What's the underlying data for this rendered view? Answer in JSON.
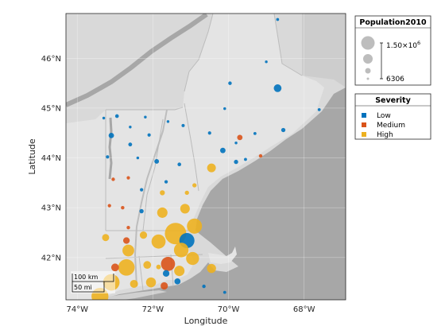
{
  "chart_data": {
    "type": "scatter",
    "subtype": "geographic-bubble",
    "xlabel": "Longitude",
    "ylabel": "Latitude",
    "xlim": [
      -74.3,
      -66.9
    ],
    "ylim": [
      41.15,
      46.9
    ],
    "x_ticks": [
      -74,
      -72,
      -70,
      -68
    ],
    "x_tick_labels": [
      "74°W",
      "72°W",
      "70°W",
      "68°W"
    ],
    "y_ticks": [
      42,
      43,
      44,
      45,
      46
    ],
    "y_tick_labels": [
      "42°N",
      "43°N",
      "44°N",
      "45°N",
      "46°N"
    ],
    "grid": true,
    "size_legend": {
      "title": "Population2010",
      "max_label": "1.50×10",
      "max_label_exp": "6",
      "min_label": "6306",
      "max_value": 1500000,
      "min_value": 6306
    },
    "color_legend": {
      "title": "Severity",
      "placement": "right",
      "categories": [
        {
          "name": "Low",
          "color": "#0072BD"
        },
        {
          "name": "Medium",
          "color": "#D95319"
        },
        {
          "name": "High",
          "color": "#EDB120"
        }
      ]
    },
    "scale_bar": {
      "km_label": "100 km",
      "mi_label": "50 mi"
    },
    "points": [
      {
        "lon": -68.7,
        "lat": 46.78,
        "pop": 9000,
        "severity": "Low"
      },
      {
        "lon": -69.0,
        "lat": 45.93,
        "pop": 6306,
        "severity": "Low"
      },
      {
        "lon": -69.96,
        "lat": 45.5,
        "pop": 17000,
        "severity": "Low"
      },
      {
        "lon": -68.7,
        "lat": 45.4,
        "pop": 150000,
        "severity": "Low"
      },
      {
        "lon": -70.1,
        "lat": 44.99,
        "pop": 7000,
        "severity": "Low"
      },
      {
        "lon": -67.6,
        "lat": 44.97,
        "pop": 9000,
        "severity": "Low"
      },
      {
        "lon": -72.95,
        "lat": 44.84,
        "pop": 20000,
        "severity": "Low"
      },
      {
        "lon": -73.3,
        "lat": 44.8,
        "pop": 6800,
        "severity": "Low"
      },
      {
        "lon": -72.2,
        "lat": 44.82,
        "pop": 7000,
        "severity": "Low"
      },
      {
        "lon": -71.6,
        "lat": 44.73,
        "pop": 6400,
        "severity": "Low"
      },
      {
        "lon": -71.2,
        "lat": 44.65,
        "pop": 12000,
        "severity": "Low"
      },
      {
        "lon": -72.6,
        "lat": 44.62,
        "pop": 6600,
        "severity": "Low"
      },
      {
        "lon": -73.1,
        "lat": 44.45,
        "pop": 60000,
        "severity": "Low"
      },
      {
        "lon": -72.1,
        "lat": 44.46,
        "pop": 14000,
        "severity": "Low"
      },
      {
        "lon": -70.5,
        "lat": 44.5,
        "pop": 14000,
        "severity": "Low"
      },
      {
        "lon": -69.3,
        "lat": 44.49,
        "pop": 10000,
        "severity": "Low"
      },
      {
        "lon": -68.55,
        "lat": 44.56,
        "pop": 30000,
        "severity": "Low"
      },
      {
        "lon": -69.7,
        "lat": 44.41,
        "pop": 60000,
        "severity": "Medium"
      },
      {
        "lon": -72.6,
        "lat": 44.27,
        "pop": 22000,
        "severity": "Low"
      },
      {
        "lon": -69.8,
        "lat": 44.3,
        "pop": 7000,
        "severity": "Low"
      },
      {
        "lon": -70.15,
        "lat": 44.15,
        "pop": 60000,
        "severity": "Low"
      },
      {
        "lon": -73.2,
        "lat": 44.02,
        "pop": 12000,
        "severity": "Low"
      },
      {
        "lon": -72.4,
        "lat": 44.0,
        "pop": 6600,
        "severity": "Low"
      },
      {
        "lon": -71.9,
        "lat": 43.93,
        "pop": 40000,
        "severity": "Low"
      },
      {
        "lon": -71.3,
        "lat": 43.87,
        "pop": 19000,
        "severity": "Low"
      },
      {
        "lon": -69.8,
        "lat": 43.92,
        "pop": 30000,
        "severity": "Low"
      },
      {
        "lon": -69.55,
        "lat": 43.97,
        "pop": 10000,
        "severity": "Low"
      },
      {
        "lon": -69.15,
        "lat": 44.04,
        "pop": 17000,
        "severity": "Medium"
      },
      {
        "lon": -70.45,
        "lat": 43.8,
        "pop": 200000,
        "severity": "High"
      },
      {
        "lon": -72.65,
        "lat": 43.6,
        "pop": 14000,
        "severity": "Medium"
      },
      {
        "lon": -73.05,
        "lat": 43.57,
        "pop": 16000,
        "severity": "Medium"
      },
      {
        "lon": -71.65,
        "lat": 43.52,
        "pop": 15000,
        "severity": "Low"
      },
      {
        "lon": -72.3,
        "lat": 43.36,
        "pop": 14000,
        "severity": "Low"
      },
      {
        "lon": -71.75,
        "lat": 43.3,
        "pop": 50000,
        "severity": "High"
      },
      {
        "lon": -71.1,
        "lat": 43.3,
        "pop": 30000,
        "severity": "High"
      },
      {
        "lon": -70.9,
        "lat": 43.45,
        "pop": 30000,
        "severity": "High"
      },
      {
        "lon": -73.15,
        "lat": 43.04,
        "pop": 15000,
        "severity": "Medium"
      },
      {
        "lon": -72.8,
        "lat": 43.0,
        "pop": 17000,
        "severity": "Medium"
      },
      {
        "lon": -72.3,
        "lat": 42.93,
        "pop": 30000,
        "severity": "Low"
      },
      {
        "lon": -71.75,
        "lat": 42.9,
        "pop": 300000,
        "severity": "High"
      },
      {
        "lon": -71.15,
        "lat": 42.98,
        "pop": 250000,
        "severity": "High"
      },
      {
        "lon": -73.25,
        "lat": 42.4,
        "pop": 120000,
        "severity": "High"
      },
      {
        "lon": -72.65,
        "lat": 42.6,
        "pop": 16000,
        "severity": "Medium"
      },
      {
        "lon": -72.7,
        "lat": 42.34,
        "pop": 100000,
        "severity": "Medium"
      },
      {
        "lon": -72.25,
        "lat": 42.45,
        "pop": 130000,
        "severity": "High"
      },
      {
        "lon": -71.85,
        "lat": 42.32,
        "pop": 600000,
        "severity": "High"
      },
      {
        "lon": -72.65,
        "lat": 42.14,
        "pop": 400000,
        "severity": "High"
      },
      {
        "lon": -71.4,
        "lat": 42.48,
        "pop": 1500000,
        "severity": "High"
      },
      {
        "lon": -70.9,
        "lat": 42.63,
        "pop": 700000,
        "severity": "High"
      },
      {
        "lon": -71.1,
        "lat": 42.34,
        "pop": 700000,
        "severity": "Low"
      },
      {
        "lon": -71.25,
        "lat": 42.15,
        "pop": 650000,
        "severity": "High"
      },
      {
        "lon": -73.0,
        "lat": 41.8,
        "pop": 150000,
        "severity": "Medium"
      },
      {
        "lon": -72.7,
        "lat": 41.8,
        "pop": 850000,
        "severity": "High"
      },
      {
        "lon": -72.15,
        "lat": 41.85,
        "pop": 150000,
        "severity": "High"
      },
      {
        "lon": -71.6,
        "lat": 41.87,
        "pop": 600000,
        "severity": "Medium"
      },
      {
        "lon": -71.3,
        "lat": 41.73,
        "pop": 300000,
        "severity": "High"
      },
      {
        "lon": -70.95,
        "lat": 41.98,
        "pop": 500000,
        "severity": "High"
      },
      {
        "lon": -71.65,
        "lat": 41.68,
        "pop": 100000,
        "severity": "Low"
      },
      {
        "lon": -71.85,
        "lat": 41.81,
        "pop": 40000,
        "severity": "High"
      },
      {
        "lon": -70.45,
        "lat": 41.78,
        "pop": 220000,
        "severity": "High"
      },
      {
        "lon": -71.35,
        "lat": 41.52,
        "pop": 80000,
        "severity": "Low"
      },
      {
        "lon": -71.7,
        "lat": 41.43,
        "pop": 130000,
        "severity": "Medium"
      },
      {
        "lon": -73.1,
        "lat": 41.5,
        "pop": 850000,
        "severity": "High"
      },
      {
        "lon": -72.5,
        "lat": 41.47,
        "pop": 160000,
        "severity": "High"
      },
      {
        "lon": -72.05,
        "lat": 41.5,
        "pop": 270000,
        "severity": "High"
      },
      {
        "lon": -70.65,
        "lat": 41.42,
        "pop": 16000,
        "severity": "Low"
      },
      {
        "lon": -70.1,
        "lat": 41.3,
        "pop": 10000,
        "severity": "Low"
      },
      {
        "lon": -73.4,
        "lat": 41.22,
        "pop": 900000,
        "severity": "High"
      }
    ]
  }
}
